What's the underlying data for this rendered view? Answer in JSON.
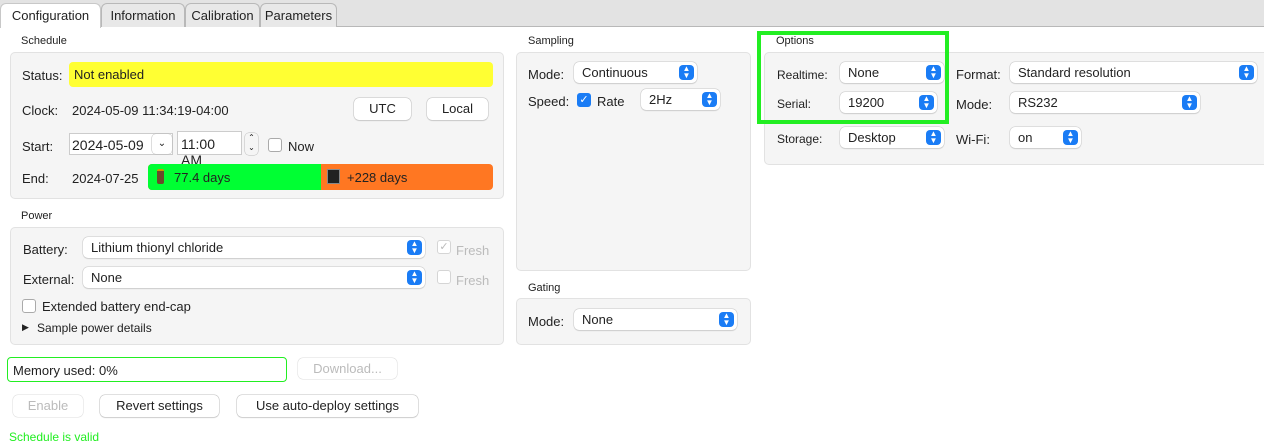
{
  "tabs": [
    {
      "label": "Configuration",
      "active": true
    },
    {
      "label": "Information"
    },
    {
      "label": "Calibration"
    },
    {
      "label": "Parameters"
    }
  ],
  "schedule": {
    "title": "Schedule",
    "status_label": "Status:",
    "status_value": "Not enabled",
    "status_color": "#ffff33",
    "clock_label": "Clock:",
    "clock_value": "2024-05-09 11:34:19-04:00",
    "utc_button": "UTC",
    "local_button": "Local",
    "start_label": "Start:",
    "start_date": "2024-05-09",
    "start_time": "11:00 AM",
    "now_label": "Now",
    "now_checked": false,
    "end_label": "End:",
    "end_date": "2024-07-25",
    "battery_days": "77.4 days",
    "memory_days": "+228 days",
    "battery_color": "#00ff33",
    "memory_color": "#ff7722"
  },
  "power": {
    "title": "Power",
    "battery_label": "Battery:",
    "battery_value": "Lithium thionyl chloride",
    "fresh_label": "Fresh",
    "battery_fresh_checked": true,
    "external_label": "External:",
    "external_value": "None",
    "external_fresh_checked": false,
    "endcap_label": "Extended battery end-cap",
    "endcap_checked": false,
    "details_label": "Sample power details"
  },
  "memory": {
    "label": "Memory used: 0%",
    "download_button": "Download..."
  },
  "actions": {
    "enable": "Enable",
    "revert": "Revert settings",
    "auto_deploy": "Use auto-deploy settings"
  },
  "validation": {
    "message": "Schedule is valid",
    "color": "#22ee22"
  },
  "sampling": {
    "title": "Sampling",
    "mode_label": "Mode:",
    "mode_value": "Continuous",
    "speed_label": "Speed:",
    "rate_label": "Rate",
    "rate_checked": true,
    "rate_value": "2Hz"
  },
  "gating": {
    "title": "Gating",
    "mode_label": "Mode:",
    "mode_value": "None"
  },
  "options": {
    "title": "Options",
    "realtime_label": "Realtime:",
    "realtime_value": "None",
    "format_label": "Format:",
    "format_value": "Standard resolution",
    "serial_label": "Serial:",
    "serial_value": "19200",
    "mode_label": "Mode:",
    "mode_value": "RS232",
    "storage_label": "Storage:",
    "storage_value": "Desktop",
    "wifi_label": "Wi-Fi:",
    "wifi_value": "on",
    "highlight_color": "#22ee22"
  }
}
